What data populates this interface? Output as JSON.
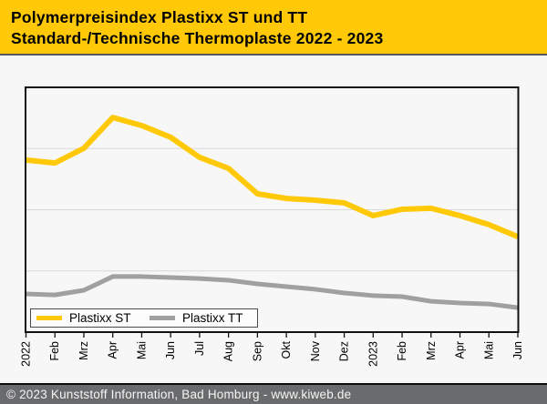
{
  "header": {
    "title_line1": "Polymerpreisindex Plastixx ST und TT",
    "title_line2": "Standard-/Technische Thermoplaste 2022 - 2023",
    "bg_color": "#FFC908",
    "text_color": "#000000"
  },
  "footer": {
    "text": "© 2023 Kunststoff Information, Bad Homburg - www.kiweb.de",
    "bg_color": "#6A6B6D",
    "text_color": "#F5F5F5"
  },
  "legend": {
    "items": [
      {
        "label": "Plastixx ST",
        "color": "#FFC908"
      },
      {
        "label": "Plastixx TT",
        "color": "#A0A0A0"
      }
    ],
    "position": "bottom-left inside plot"
  },
  "chart_data": {
    "type": "line",
    "title": "Polymerpreisindex Plastixx ST und TT — Standard-/Technische Thermoplaste 2022 - 2023",
    "x_tick_labels": [
      "2022",
      "Feb",
      "Mrz",
      "Apr",
      "Mai",
      "Jun",
      "Jul",
      "Aug",
      "Sep",
      "Okt",
      "Nov",
      "Dez",
      "2023",
      "Feb",
      "Mrz",
      "Apr",
      "Mai",
      "Jun"
    ],
    "x_tick_label_rotation_deg": -90,
    "y_axis": "no tick labels shown (index values unlabeled)",
    "ylim_pct": [
      0,
      100
    ],
    "gridlines_pct": [
      25,
      50,
      75
    ],
    "grid_color": "#D8D8D8",
    "plot_border_color": "#111111",
    "plot_bg": "#F7F7F7",
    "legend_position": "bottom-left inside plot",
    "series": [
      {
        "name": "Plastixx ST",
        "color": "#FFC908",
        "stroke_width": 6,
        "values_pct_of_plot_height": [
          70.3,
          69.1,
          75.1,
          87.7,
          84.4,
          79.6,
          71.4,
          66.9,
          56.5,
          54.6,
          53.9,
          52.8,
          47.6,
          50.2,
          50.6,
          47.6,
          43.9,
          39.0
        ]
      },
      {
        "name": "Plastixx TT",
        "color": "#A0A0A0",
        "stroke_width": 5,
        "values_pct_of_plot_height": [
          15.6,
          15.2,
          17.1,
          22.7,
          22.7,
          22.3,
          21.9,
          21.2,
          19.7,
          18.6,
          17.5,
          16.0,
          14.9,
          14.5,
          12.6,
          11.9,
          11.5,
          10.0
        ]
      }
    ]
  }
}
